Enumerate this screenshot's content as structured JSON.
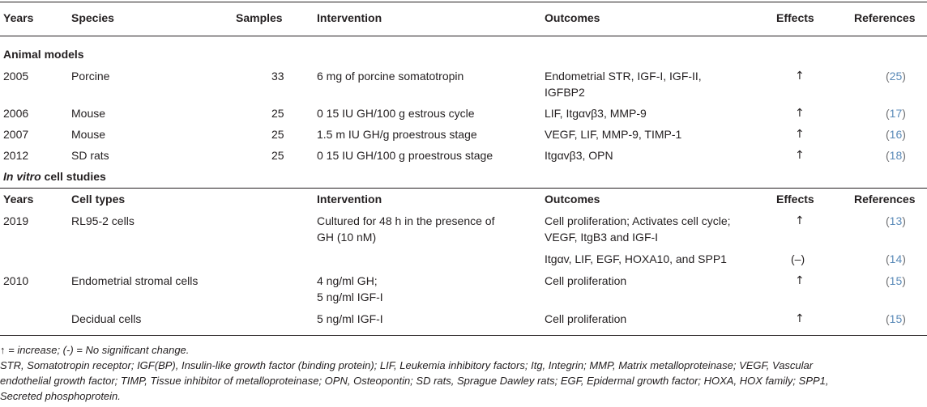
{
  "table": {
    "headers": {
      "years": "Years",
      "species": "Species",
      "samples": "Samples",
      "intervention": "Intervention",
      "outcomes": "Outcomes",
      "effects": "Effects",
      "references": "References"
    },
    "section_animal": "Animal models",
    "animal_rows": [
      {
        "year": "2005",
        "species": "Porcine",
        "samples": "33",
        "intervention": "6 mg of porcine somatotropin",
        "outcomes_1": "Endometrial STR, IGF-I, IGF-II,",
        "outcomes_2": "IGFBP2",
        "effect": "↑",
        "ref_num": "25"
      },
      {
        "year": "2006",
        "species": "Mouse",
        "samples": "25",
        "intervention": "0 15 IU GH/100 g estrous cycle",
        "outcomes_1": "LIF, Itgαvβ3, MMP-9",
        "effect": "↑",
        "ref_num": "17"
      },
      {
        "year": "2007",
        "species": "Mouse",
        "samples": "25",
        "intervention": "1.5 m IU GH/g proestrous stage",
        "outcomes_1": "VEGF, LIF, MMP-9, TIMP-1",
        "effect": "↑",
        "ref_num": "16"
      },
      {
        "year": "2012",
        "species": "SD rats",
        "samples": "25",
        "intervention": "0 15 IU GH/100 g proestrous stage",
        "outcomes_1": "Itgαvβ3, OPN",
        "effect": "↑",
        "ref_num": "18"
      }
    ],
    "section_invitro_italic": "In vitro",
    "section_invitro_rest": " cell studies",
    "headers2": {
      "years": "Years",
      "cell_types": "Cell types",
      "intervention": "Intervention",
      "outcomes": "Outcomes",
      "effects": "Effects",
      "references": "References"
    },
    "cell_rows": [
      {
        "year": "2019",
        "cell": "RL95-2 cells",
        "intervention_1": "Cultured for 48 h in the presence of",
        "intervention_2": "GH (10 nM)",
        "outcomes_1": "Cell proliferation; Activates cell cycle;",
        "outcomes_2": "VEGF, ItgB3 and IGF-I",
        "effect": "↑",
        "ref_num": "13"
      },
      {
        "outcomes_1": "Itgαv, LIF, EGF, HOXA10, and SPP1",
        "effect": "(–)",
        "ref_num": "14"
      },
      {
        "year": "2010",
        "cell": "Endometrial stromal cells",
        "intervention_1": "4 ng/ml GH;",
        "intervention_2": "5 ng/ml IGF-I",
        "outcomes_1": "Cell proliferation",
        "effect": "↑",
        "ref_num": "15"
      },
      {
        "cell": "Decidual cells",
        "intervention_1": "5 ng/ml IGF-I",
        "outcomes_1": "Cell proliferation",
        "effect": "↑",
        "ref_num": "15"
      }
    ]
  },
  "footnotes": {
    "line1": "↑ = increase; (-) = No significant change.",
    "line2": "STR, Somatotropin receptor; IGF(BP), Insulin-like growth factor (binding protein); LIF, Leukemia inhibitory factors; Itg, Integrin; MMP, Matrix metalloproteinase; VEGF, Vascular",
    "line3": "endothelial growth factor; TIMP, Tissue inhibitor of metalloproteinase; OPN, Osteopontin; SD rats, Sprague Dawley rats; EGF, Epidermal growth factor; HOXA, HOX family; SPP1,",
    "line4": "Secreted phosphoprotein."
  }
}
